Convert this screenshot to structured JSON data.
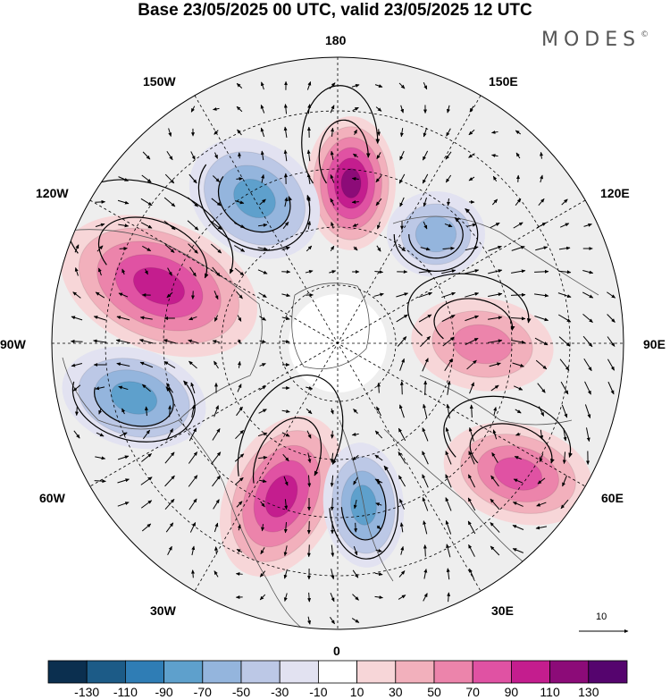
{
  "title": "Base 23/05/2025 00 UTC, valid 23/05/2025 12 UTC",
  "brand": "MODES",
  "brand_mark": "©",
  "map": {
    "projection": "north-polar-stereographic",
    "longitude_labels": {
      "top": "180",
      "top_left": "150W",
      "top_right": "150E",
      "left_upper": "120W",
      "right_upper": "120E",
      "left": "90W",
      "right": "90E",
      "left_lower": "60W",
      "right_lower": "60E",
      "bottom_left": "30W",
      "bottom_right": "30E",
      "bottom": "0"
    },
    "reference_vector": "10",
    "anomaly_centers": [
      {
        "name": "north-pacific-high",
        "sign": "positive",
        "peak": 110
      },
      {
        "name": "alaska-canada-high",
        "sign": "positive",
        "peak": 90
      },
      {
        "name": "north-atlantic-high",
        "sign": "positive",
        "peak": 90
      },
      {
        "name": "siberia-high",
        "sign": "positive",
        "peak": 50
      },
      {
        "name": "central-asia-high",
        "sign": "positive",
        "peak": 70
      },
      {
        "name": "north-pacific-low",
        "sign": "negative",
        "peak": -70
      },
      {
        "name": "east-siberia-low",
        "sign": "negative",
        "peak": -50
      },
      {
        "name": "hudson-low",
        "sign": "negative",
        "peak": -70
      },
      {
        "name": "europe-low",
        "sign": "negative",
        "peak": -70
      }
    ]
  },
  "colorbar": {
    "ticks": [
      "-130",
      "-110",
      "-90",
      "-70",
      "-50",
      "-30",
      "-10",
      "10",
      "30",
      "50",
      "70",
      "90",
      "110",
      "130"
    ],
    "colors": [
      "#0b2f4f",
      "#1c5b87",
      "#2f7db5",
      "#5ea0cc",
      "#94b5dd",
      "#bcc8e6",
      "#e2e2f1",
      "#ffffff",
      "#f7d6d8",
      "#f2b0bc",
      "#ec84ab",
      "#e052a3",
      "#c41d8e",
      "#8c0b78",
      "#55046e"
    ]
  }
}
